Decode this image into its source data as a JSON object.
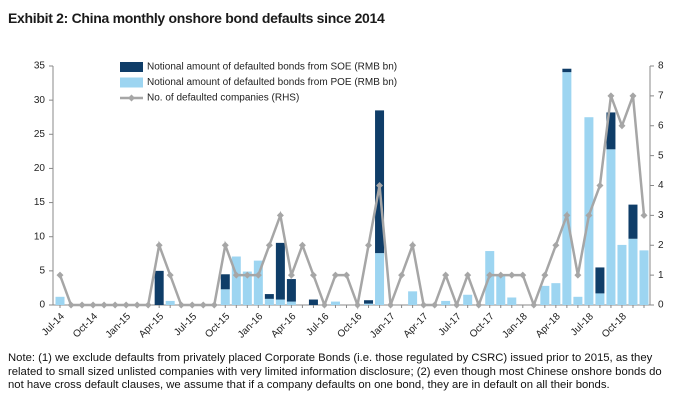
{
  "chart_data": {
    "type": "bar-line",
    "title": "Exhibit 2: China monthly onshore bond defaults since 2014",
    "note": "Note: (1) we exclude defaults from privately placed Corporate Bonds (i.e. those regulated by CSRC) issued prior to 2015, as they related to small sized unlisted companies with very limited information disclosure; (2) even though most Chinese onshore bonds do not have cross default clauses, we assume that if a company defaults on one bond, they are in default on all their bonds.",
    "categories": [
      "Jul-14",
      null,
      null,
      "Oct-14",
      null,
      null,
      "Jan-15",
      null,
      null,
      "Apr-15",
      null,
      null,
      "Jul-15",
      null,
      null,
      "Oct-15",
      null,
      null,
      "Jan-16",
      null,
      null,
      "Apr-16",
      null,
      null,
      "Jul-16",
      null,
      null,
      "Oct-16",
      null,
      null,
      "Jan-17",
      null,
      null,
      "Apr-17",
      null,
      null,
      "Jul-17",
      null,
      null,
      "Oct-17",
      null,
      null,
      "Jan-18",
      null,
      null,
      "Apr-18",
      null,
      null,
      "Jul-18",
      null,
      null,
      "Oct-18",
      null,
      null
    ],
    "series": [
      {
        "name": "Notional amount of defaulted bonds from SOE (RMB bn)",
        "color": "#0f3d68",
        "type": "bar",
        "values": [
          0,
          0,
          0,
          0,
          0,
          0,
          0,
          0,
          0,
          5.0,
          0,
          0,
          0,
          0,
          0,
          2.2,
          0,
          0,
          0,
          0.7,
          8.3,
          3.3,
          0,
          0.8,
          0,
          0,
          0,
          0,
          0.5,
          20.9,
          0,
          0,
          0,
          0,
          0,
          0,
          0,
          0,
          0,
          0,
          0,
          0,
          0,
          0,
          0,
          0,
          0.5,
          0,
          0,
          3.8,
          5.4,
          0,
          5.0,
          0
        ]
      },
      {
        "name": "Notional amount of defaulted bonds from POE (RMB bn)",
        "color": "#9dd5f1",
        "type": "bar",
        "values": [
          1.2,
          0,
          0,
          0,
          0,
          0,
          0,
          0,
          0,
          0,
          0.6,
          0,
          0,
          0,
          0,
          2.3,
          7.1,
          4.9,
          6.5,
          0.9,
          0.8,
          0.5,
          0,
          0,
          0,
          0.5,
          0,
          0,
          0.2,
          7.6,
          0,
          0,
          2.0,
          0,
          0,
          0.6,
          0,
          1.5,
          0,
          7.9,
          4.4,
          1.1,
          0,
          0,
          2.8,
          3.2,
          34.1,
          1.2,
          27.5,
          1.7,
          22.8,
          8.8,
          9.7,
          8.0
        ]
      },
      {
        "name": "No. of defaulted companies (RHS)",
        "color": "#a6a6a6",
        "type": "line",
        "axis": "y2",
        "values": [
          1,
          0,
          0,
          0,
          0,
          0,
          0,
          0,
          0,
          2,
          1,
          0,
          0,
          0,
          0,
          2,
          1,
          1,
          1,
          2,
          3,
          1,
          2,
          1,
          0,
          1,
          1,
          0,
          2,
          4,
          0,
          1,
          2,
          0,
          0,
          1,
          0,
          1,
          0,
          1,
          1,
          1,
          1,
          0,
          1,
          2,
          3,
          1,
          3,
          4,
          7,
          6,
          7,
          3
        ]
      }
    ],
    "ylim": [
      0,
      35
    ],
    "yticks": [
      0,
      5,
      10,
      15,
      20,
      25,
      30,
      35
    ],
    "y2lim": [
      0,
      8
    ],
    "y2ticks": [
      0,
      1,
      2,
      3,
      4,
      5,
      6,
      7,
      8
    ]
  }
}
